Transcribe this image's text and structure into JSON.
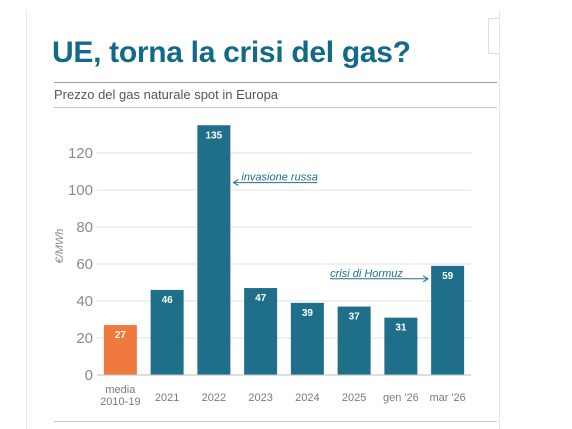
{
  "chart_data": {
    "type": "bar",
    "title": "UE, torna la crisi del gas?",
    "subtitle": "Prezzo del gas naturale spot in Europa",
    "ylabel": "€/MWh",
    "ylim": [
      0,
      140
    ],
    "yticks": [
      0,
      20,
      40,
      60,
      80,
      100,
      120
    ],
    "grid": true,
    "categories": [
      "media\n2010-19",
      "2021",
      "2022",
      "2023",
      "2024",
      "2025",
      "gen '26",
      "mar '26"
    ],
    "values": [
      27,
      46,
      135,
      47,
      39,
      37,
      31,
      59
    ],
    "bar_colors": [
      "#f07a3e",
      "#1f6f8b",
      "#1f6f8b",
      "#1f6f8b",
      "#1f6f8b",
      "#1f6f8b",
      "#1f6f8b",
      "#1f6f8b"
    ],
    "annotations": [
      {
        "text": "invasione russa",
        "category": "2022",
        "value": 104
      },
      {
        "text": "crisi di Hormuz",
        "category": "mar '26",
        "value": 52
      }
    ]
  },
  "colors": {
    "accent": "#1f6f8b",
    "highlight": "#f07a3e",
    "title": "#136a86"
  },
  "controls": {
    "expand_icon": "plus-icon",
    "expand_label": "+"
  }
}
